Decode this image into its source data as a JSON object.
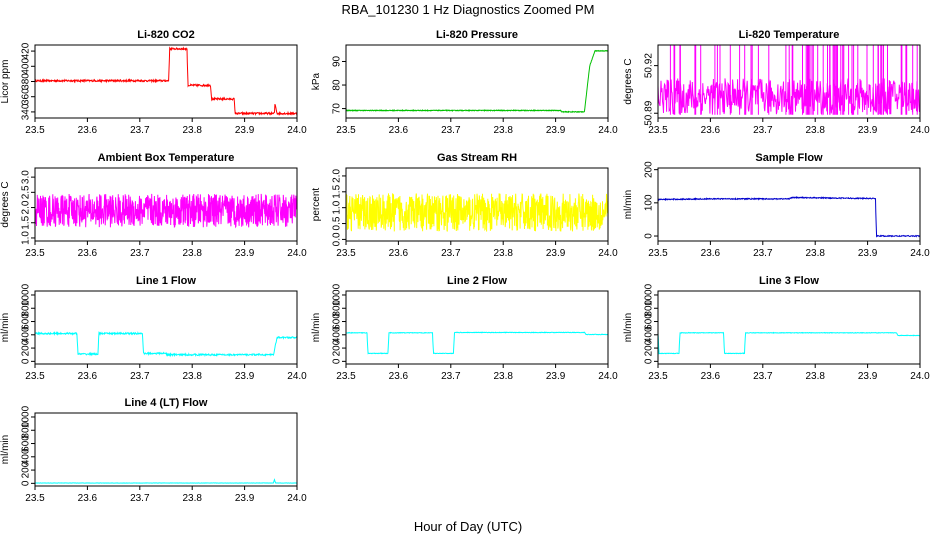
{
  "figure": {
    "title": "RBA_101230  1 Hz Diagnostics Zoomed PM",
    "xlabel": "Hour of Day (UTC)"
  },
  "chart_data": [
    {
      "type": "line",
      "title": "Li-820 CO2",
      "ylabel": "Licor ppm",
      "color": "#ff0000",
      "xlim": [
        23.5,
        24.0
      ],
      "ylim": [
        332,
        428
      ],
      "xticks": [
        23.5,
        23.6,
        23.7,
        23.8,
        23.9,
        24.0
      ],
      "yticks": [
        340,
        360,
        380,
        400,
        420
      ],
      "noise": 1.2,
      "series": [
        {
          "name": "CO2",
          "x": [
            23.5,
            23.755,
            23.757,
            23.79,
            23.792,
            23.835,
            23.837,
            23.88,
            23.882,
            23.957,
            23.958,
            23.962,
            24.0
          ],
          "values": [
            381,
            381,
            423,
            423,
            375,
            375,
            357,
            357,
            338,
            338,
            351,
            338,
            338
          ]
        }
      ]
    },
    {
      "type": "line",
      "title": "Li-820 Pressure",
      "ylabel": "kPa",
      "color": "#00c000",
      "xlim": [
        23.5,
        24.0
      ],
      "ylim": [
        66,
        97
      ],
      "xticks": [
        23.5,
        23.6,
        23.7,
        23.8,
        23.9,
        24.0
      ],
      "yticks": [
        70,
        80,
        90
      ],
      "noise": 0.15,
      "series": [
        {
          "name": "Pressure",
          "x": [
            23.5,
            23.91,
            23.912,
            23.955,
            23.965,
            23.975,
            24.0
          ],
          "values": [
            69.2,
            69.2,
            68.6,
            68.6,
            88,
            94.5,
            94.5
          ]
        }
      ]
    },
    {
      "type": "line",
      "title": "Li-820 Temperature",
      "ylabel": "degrees C",
      "color": "#ff00ff",
      "xlim": [
        23.5,
        24.0
      ],
      "ylim": [
        50.887,
        50.933
      ],
      "xticks": [
        23.5,
        23.6,
        23.7,
        23.8,
        23.9,
        24.0
      ],
      "yticks": [
        50.89,
        50.92
      ],
      "ytick_labels": [
        "50.89",
        "50.92"
      ],
      "band": [
        50.889,
        50.912
      ],
      "spikes": 64,
      "series": [
        {
          "name": "Temperature",
          "x": [
            23.5,
            24.0
          ],
          "values": [
            50.9,
            50.9
          ]
        }
      ]
    },
    {
      "type": "line",
      "title": "Ambient Box Temperature",
      "ylabel": "degrees C",
      "color": "#ff00ff",
      "xlim": [
        23.5,
        24.0
      ],
      "ylim": [
        0.9,
        3.3
      ],
      "xticks": [
        23.5,
        23.6,
        23.7,
        23.8,
        23.9,
        24.0
      ],
      "yticks": [
        1.0,
        1.5,
        2.0,
        2.5,
        3.0
      ],
      "ytick_labels": [
        "1.0",
        "1.5",
        "2.0",
        "2.5",
        "3.0"
      ],
      "noise": 0.55,
      "series": [
        {
          "name": "Box Temp",
          "x": [
            23.5,
            24.0
          ],
          "values": [
            1.9,
            1.9
          ]
        }
      ]
    },
    {
      "type": "line",
      "title": "Gas Stream RH",
      "ylabel": "percent",
      "color": "#ffff00",
      "xlim": [
        23.5,
        24.0
      ],
      "ylim": [
        -0.05,
        2.25
      ],
      "xticks": [
        23.5,
        23.6,
        23.7,
        23.8,
        23.9,
        24.0
      ],
      "yticks": [
        0.0,
        0.5,
        1.0,
        1.5,
        2.0
      ],
      "ytick_labels": [
        "0.0",
        "0.5",
        "1.0",
        "1.5",
        "2.0"
      ],
      "noise": 0.6,
      "series": [
        {
          "name": "RH",
          "x": [
            23.5,
            24.0
          ],
          "values": [
            0.85,
            0.85
          ]
        }
      ]
    },
    {
      "type": "line",
      "title": "Sample Flow",
      "ylabel": "ml/min",
      "color": "#0000cc",
      "xlim": [
        23.5,
        24.0
      ],
      "ylim": [
        -15,
        205
      ],
      "xticks": [
        23.5,
        23.6,
        23.7,
        23.8,
        23.9,
        24.0
      ],
      "yticks": [
        0,
        100,
        200
      ],
      "noise": 1.5,
      "series": [
        {
          "name": "Sample Flow",
          "x": [
            23.5,
            23.6,
            23.75,
            23.755,
            23.915,
            23.917,
            24.0
          ],
          "values": [
            110,
            112,
            112,
            116,
            113,
            0,
            0
          ]
        }
      ]
    },
    {
      "type": "line",
      "title": "Line 1 Flow",
      "ylabel": "ml/min",
      "color": "#00ffff",
      "xlim": [
        23.5,
        24.0
      ],
      "ylim": [
        -40,
        1060
      ],
      "xticks": [
        23.5,
        23.6,
        23.7,
        23.8,
        23.9,
        24.0
      ],
      "yticks": [
        0,
        200,
        400,
        600,
        800,
        1000
      ],
      "noise": 12,
      "series": [
        {
          "name": "Line 1",
          "x": [
            23.5,
            23.58,
            23.582,
            23.62,
            23.622,
            23.705,
            23.707,
            23.75,
            23.752,
            23.955,
            23.962,
            24.0
          ],
          "values": [
            420,
            420,
            110,
            110,
            420,
            420,
            120,
            120,
            100,
            100,
            360,
            360
          ]
        }
      ]
    },
    {
      "type": "line",
      "title": "Line 2 Flow",
      "ylabel": "ml/min",
      "color": "#00ffff",
      "xlim": [
        23.5,
        24.0
      ],
      "ylim": [
        -40,
        1060
      ],
      "xticks": [
        23.5,
        23.6,
        23.7,
        23.8,
        23.9,
        24.0
      ],
      "yticks": [
        0,
        200,
        400,
        600,
        800,
        1000
      ],
      "noise": 4,
      "series": [
        {
          "name": "Line 2",
          "x": [
            23.5,
            23.54,
            23.542,
            23.58,
            23.582,
            23.665,
            23.667,
            23.705,
            23.707,
            23.955,
            23.958,
            24.0
          ],
          "values": [
            430,
            430,
            120,
            120,
            430,
            430,
            120,
            120,
            435,
            435,
            405,
            405
          ]
        }
      ]
    },
    {
      "type": "line",
      "title": "Line 3 Flow",
      "ylabel": "ml/min",
      "color": "#00ffff",
      "xlim": [
        23.5,
        24.0
      ],
      "ylim": [
        -40,
        1060
      ],
      "xticks": [
        23.5,
        23.6,
        23.7,
        23.8,
        23.9,
        24.0
      ],
      "yticks": [
        0,
        200,
        400,
        600,
        800,
        1000
      ],
      "noise": 4,
      "series": [
        {
          "name": "Line 3",
          "x": [
            23.5,
            23.502,
            23.54,
            23.542,
            23.625,
            23.627,
            23.665,
            23.667,
            23.955,
            23.958,
            24.0
          ],
          "values": [
            430,
            120,
            120,
            430,
            430,
            120,
            120,
            430,
            430,
            390,
            390
          ]
        }
      ]
    },
    {
      "type": "line",
      "title": "Line 4 (LT) Flow",
      "ylabel": "ml/min",
      "color": "#00ffff",
      "xlim": [
        23.5,
        24.0
      ],
      "ylim": [
        -40,
        1060
      ],
      "xticks": [
        23.5,
        23.6,
        23.7,
        23.8,
        23.9,
        24.0
      ],
      "yticks": [
        0,
        200,
        400,
        600,
        800,
        1000
      ],
      "noise": 2,
      "series": [
        {
          "name": "Line 4",
          "x": [
            23.5,
            23.955,
            23.957,
            23.959,
            24.0
          ],
          "values": [
            5,
            5,
            60,
            5,
            5
          ]
        }
      ]
    }
  ]
}
